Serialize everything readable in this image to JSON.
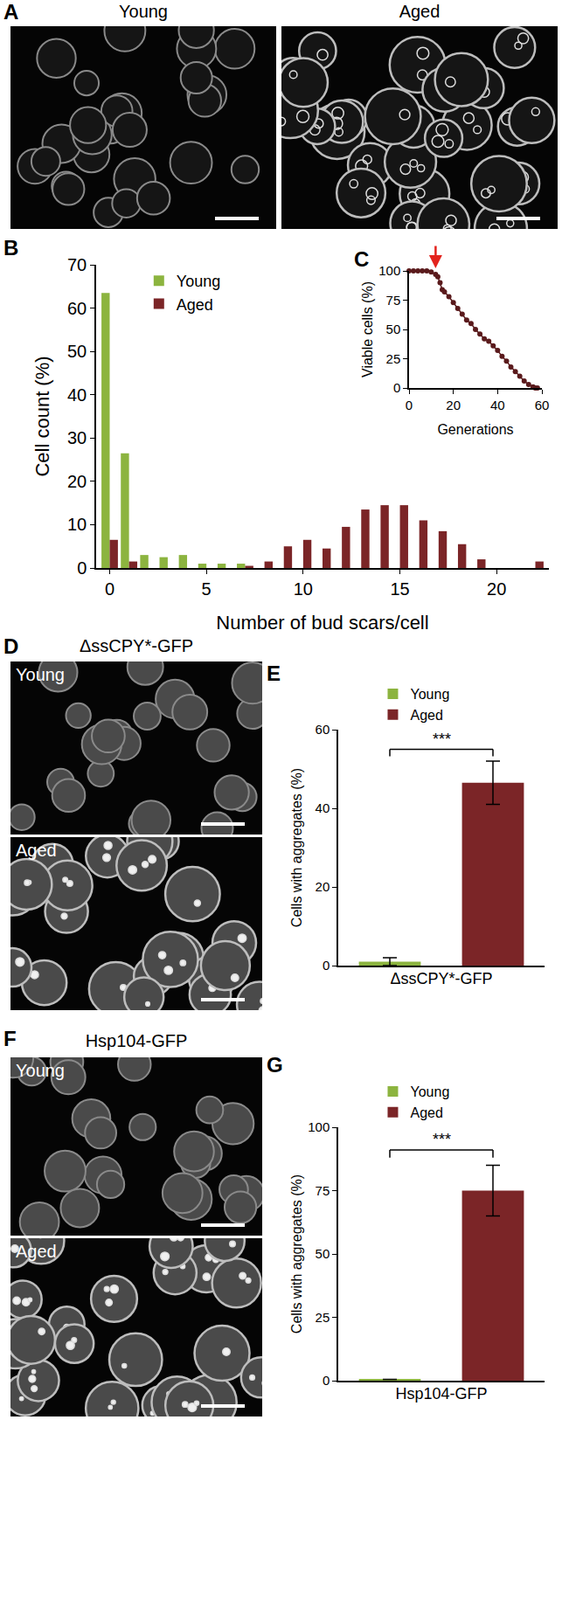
{
  "panels": [
    {
      "letter": "A",
      "type": "image",
      "images": [
        {
          "label": "Young"
        },
        {
          "label": "Aged"
        }
      ]
    },
    {
      "letter": "D",
      "type": "image",
      "title": "ΔssCPY*-GFP",
      "images": [
        {
          "label": "Young"
        },
        {
          "label": "Aged"
        }
      ]
    },
    {
      "letter": "F",
      "type": "image",
      "title": "Hsp104-GFP",
      "images": [
        {
          "label": "Young"
        },
        {
          "label": "Aged"
        }
      ]
    }
  ],
  "chart_data": [
    {
      "panel": "B",
      "type": "bar",
      "x": [
        0,
        1,
        2,
        3,
        4,
        5,
        6,
        7,
        8,
        9,
        10,
        11,
        12,
        13,
        14,
        15,
        16,
        17,
        18,
        19,
        20,
        21,
        22
      ],
      "series": [
        {
          "name": "Young",
          "color": "#8cb43f",
          "values": [
            63.5,
            26.5,
            3,
            2.5,
            3,
            1,
            1,
            1,
            0,
            0,
            0,
            0,
            0,
            0,
            0,
            0,
            0,
            0,
            0,
            0,
            0,
            0,
            0
          ]
        },
        {
          "name": "Aged",
          "color": "#7b2527",
          "values": [
            6.5,
            1.5,
            0,
            0,
            0,
            0,
            0,
            0.5,
            1.5,
            5,
            6.5,
            4.5,
            9.5,
            13.5,
            14.5,
            14.5,
            11,
            8.5,
            5.5,
            2,
            0,
            0,
            1.5
          ]
        }
      ],
      "xlabel": "Number of bud scars/cell",
      "ylabel": "Cell count (%)",
      "xlim": [
        -0.7,
        22.7
      ],
      "xticks": [
        0,
        5,
        10,
        15,
        20
      ],
      "ylim": [
        0,
        70
      ],
      "yticks": [
        0,
        10,
        20,
        30,
        40,
        50,
        60,
        70
      ],
      "legend": "upper left",
      "grid": false
    },
    {
      "panel": "C",
      "type": "line",
      "marker": "circle",
      "color": "#5a1a1c",
      "x": [
        0,
        2,
        4,
        6,
        8,
        10,
        12,
        13,
        14,
        15,
        16,
        18,
        20,
        22,
        24,
        26,
        28,
        30,
        32,
        34,
        36,
        38,
        40,
        42,
        44,
        46,
        48,
        50,
        52,
        54,
        56,
        57,
        58
      ],
      "values": [
        100,
        100,
        100,
        100,
        100,
        99,
        97,
        95,
        90,
        84,
        82,
        78,
        73,
        68,
        63,
        58,
        55,
        50,
        46,
        42,
        40,
        36,
        32,
        27,
        23,
        18,
        14,
        10,
        6,
        3,
        1,
        0,
        0
      ],
      "xlabel": "Generations",
      "ylabel": "Viable cells (%)",
      "xlim": [
        0,
        60
      ],
      "xticks": [
        0,
        20,
        40,
        60
      ],
      "ylim": [
        0,
        100
      ],
      "yticks": [
        0,
        25,
        50,
        75,
        100
      ],
      "arrow_at": {
        "x": 12,
        "y": 100
      },
      "grid": false
    },
    {
      "panel": "E",
      "type": "bar",
      "categories": [
        "Young",
        "Aged"
      ],
      "values": [
        1,
        46.5
      ],
      "errors": [
        1,
        5.5
      ],
      "colors": [
        "#8cb43f",
        "#7b2527"
      ],
      "xlabel": "ΔssCPY*-GFP",
      "ylabel": "Cells with aggregates (%)",
      "ylim": [
        0,
        60
      ],
      "yticks": [
        0,
        20,
        40,
        60
      ],
      "tick_labels": "y",
      "legend": "top",
      "grid": false,
      "annotations": [
        {
          "text": "***",
          "from": "Young",
          "to": "Aged",
          "y": 55
        }
      ]
    },
    {
      "panel": "G",
      "type": "bar",
      "categories": [
        "Young",
        "Aged"
      ],
      "values": [
        0.5,
        75
      ],
      "errors": [
        0,
        10
      ],
      "colors": [
        "#8cb43f",
        "#7b2527"
      ],
      "xlabel": "Hsp104-GFP",
      "ylabel": "Cells with aggregates (%)",
      "ylim": [
        0,
        100
      ],
      "yticks": [
        0,
        25,
        50,
        75,
        100
      ],
      "tick_labels": "y",
      "legend": "top",
      "grid": false,
      "annotations": [
        {
          "text": "***",
          "from": "Young",
          "to": "Aged",
          "y": 91
        }
      ]
    }
  ]
}
